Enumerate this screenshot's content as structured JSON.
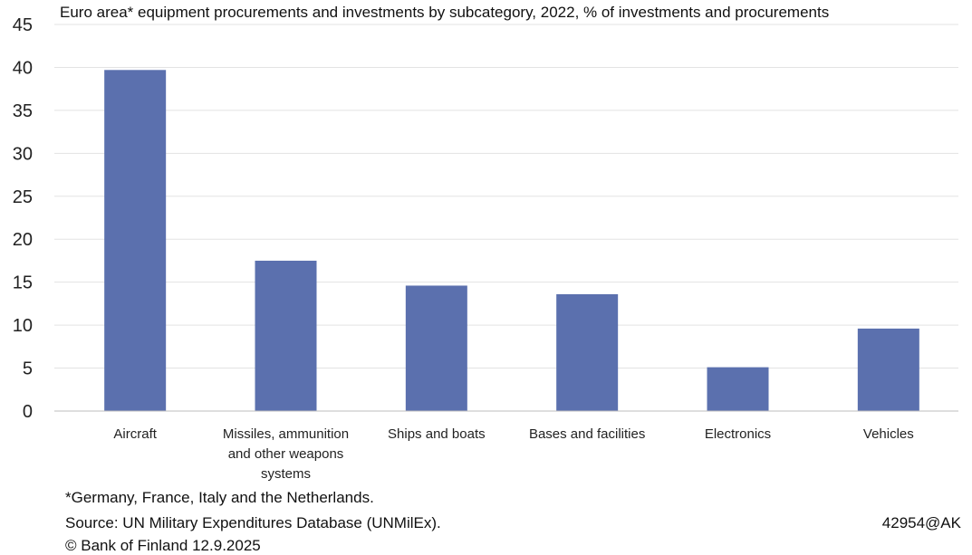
{
  "chart_data": {
    "type": "bar",
    "title": "Euro area* equipment procurements and investments by subcategory, 2022, % of investments and procurements",
    "categories": [
      [
        "Aircraft"
      ],
      [
        "Missiles, ammunition",
        "and other weapons",
        "systems"
      ],
      [
        "Ships and boats"
      ],
      [
        "Bases and facilities"
      ],
      [
        "Electronics"
      ],
      [
        "Vehicles"
      ]
    ],
    "values": [
      39.7,
      17.5,
      14.6,
      13.6,
      5.1,
      9.6
    ],
    "ylim": [
      0,
      45
    ],
    "yticks": [
      0,
      5,
      10,
      15,
      20,
      25,
      30,
      35,
      40,
      45
    ],
    "grid": true,
    "bar_color": "#5b70ae",
    "xlabel": "",
    "ylabel": ""
  },
  "footer": {
    "note": "*Germany, France, Italy and the Netherlands.",
    "source": "Source: UN Military Expenditures Database (UNMilEx).",
    "copyright": "© Bank of Finland 12.9.2025",
    "code": "42954@AK"
  }
}
